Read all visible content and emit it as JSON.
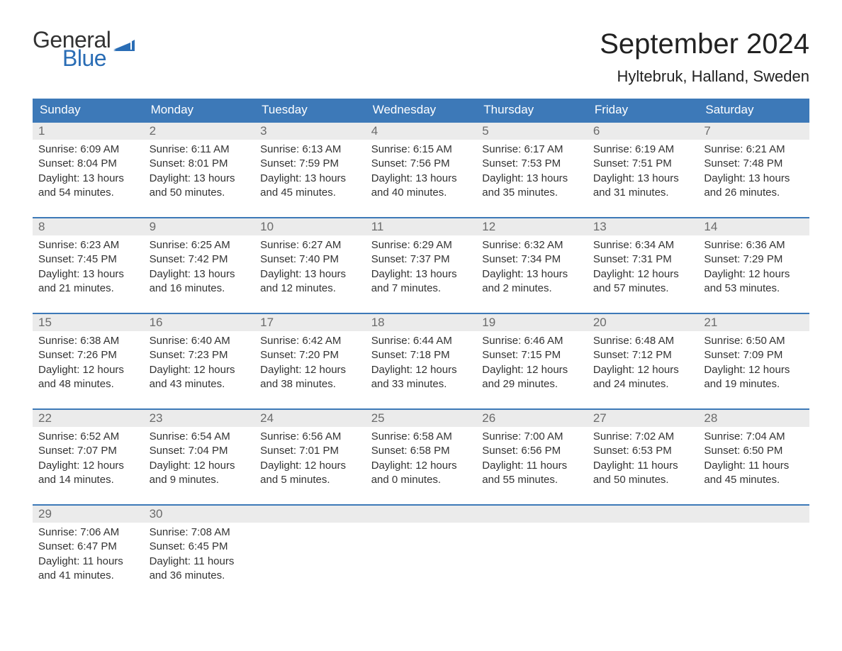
{
  "brand": {
    "word1": "General",
    "word2": "Blue",
    "word1_color": "#333333",
    "word2_color": "#2a6db5",
    "flag_color": "#2a6db5",
    "fontsize": 32
  },
  "title": {
    "month_year": "September 2024",
    "location": "Hyltebruk, Halland, Sweden",
    "month_fontsize": 40,
    "month_color": "#222222",
    "location_fontsize": 22,
    "location_color": "#222222"
  },
  "calendar": {
    "header_bg": "#3d79b8",
    "header_fg": "#ffffff",
    "week_border_color": "#3d79b8",
    "daynum_bg": "#ebebeb",
    "daynum_fg": "#6b6b6b",
    "body_fg": "#333333",
    "body_bg": "#ffffff",
    "cell_fontsize": 15,
    "header_fontsize": 17,
    "days_of_week": [
      "Sunday",
      "Monday",
      "Tuesday",
      "Wednesday",
      "Thursday",
      "Friday",
      "Saturday"
    ],
    "weeks": [
      [
        {
          "n": "1",
          "sunrise": "Sunrise: 6:09 AM",
          "sunset": "Sunset: 8:04 PM",
          "dl1": "Daylight: 13 hours",
          "dl2": "and 54 minutes."
        },
        {
          "n": "2",
          "sunrise": "Sunrise: 6:11 AM",
          "sunset": "Sunset: 8:01 PM",
          "dl1": "Daylight: 13 hours",
          "dl2": "and 50 minutes."
        },
        {
          "n": "3",
          "sunrise": "Sunrise: 6:13 AM",
          "sunset": "Sunset: 7:59 PM",
          "dl1": "Daylight: 13 hours",
          "dl2": "and 45 minutes."
        },
        {
          "n": "4",
          "sunrise": "Sunrise: 6:15 AM",
          "sunset": "Sunset: 7:56 PM",
          "dl1": "Daylight: 13 hours",
          "dl2": "and 40 minutes."
        },
        {
          "n": "5",
          "sunrise": "Sunrise: 6:17 AM",
          "sunset": "Sunset: 7:53 PM",
          "dl1": "Daylight: 13 hours",
          "dl2": "and 35 minutes."
        },
        {
          "n": "6",
          "sunrise": "Sunrise: 6:19 AM",
          "sunset": "Sunset: 7:51 PM",
          "dl1": "Daylight: 13 hours",
          "dl2": "and 31 minutes."
        },
        {
          "n": "7",
          "sunrise": "Sunrise: 6:21 AM",
          "sunset": "Sunset: 7:48 PM",
          "dl1": "Daylight: 13 hours",
          "dl2": "and 26 minutes."
        }
      ],
      [
        {
          "n": "8",
          "sunrise": "Sunrise: 6:23 AM",
          "sunset": "Sunset: 7:45 PM",
          "dl1": "Daylight: 13 hours",
          "dl2": "and 21 minutes."
        },
        {
          "n": "9",
          "sunrise": "Sunrise: 6:25 AM",
          "sunset": "Sunset: 7:42 PM",
          "dl1": "Daylight: 13 hours",
          "dl2": "and 16 minutes."
        },
        {
          "n": "10",
          "sunrise": "Sunrise: 6:27 AM",
          "sunset": "Sunset: 7:40 PM",
          "dl1": "Daylight: 13 hours",
          "dl2": "and 12 minutes."
        },
        {
          "n": "11",
          "sunrise": "Sunrise: 6:29 AM",
          "sunset": "Sunset: 7:37 PM",
          "dl1": "Daylight: 13 hours",
          "dl2": "and 7 minutes."
        },
        {
          "n": "12",
          "sunrise": "Sunrise: 6:32 AM",
          "sunset": "Sunset: 7:34 PM",
          "dl1": "Daylight: 13 hours",
          "dl2": "and 2 minutes."
        },
        {
          "n": "13",
          "sunrise": "Sunrise: 6:34 AM",
          "sunset": "Sunset: 7:31 PM",
          "dl1": "Daylight: 12 hours",
          "dl2": "and 57 minutes."
        },
        {
          "n": "14",
          "sunrise": "Sunrise: 6:36 AM",
          "sunset": "Sunset: 7:29 PM",
          "dl1": "Daylight: 12 hours",
          "dl2": "and 53 minutes."
        }
      ],
      [
        {
          "n": "15",
          "sunrise": "Sunrise: 6:38 AM",
          "sunset": "Sunset: 7:26 PM",
          "dl1": "Daylight: 12 hours",
          "dl2": "and 48 minutes."
        },
        {
          "n": "16",
          "sunrise": "Sunrise: 6:40 AM",
          "sunset": "Sunset: 7:23 PM",
          "dl1": "Daylight: 12 hours",
          "dl2": "and 43 minutes."
        },
        {
          "n": "17",
          "sunrise": "Sunrise: 6:42 AM",
          "sunset": "Sunset: 7:20 PM",
          "dl1": "Daylight: 12 hours",
          "dl2": "and 38 minutes."
        },
        {
          "n": "18",
          "sunrise": "Sunrise: 6:44 AM",
          "sunset": "Sunset: 7:18 PM",
          "dl1": "Daylight: 12 hours",
          "dl2": "and 33 minutes."
        },
        {
          "n": "19",
          "sunrise": "Sunrise: 6:46 AM",
          "sunset": "Sunset: 7:15 PM",
          "dl1": "Daylight: 12 hours",
          "dl2": "and 29 minutes."
        },
        {
          "n": "20",
          "sunrise": "Sunrise: 6:48 AM",
          "sunset": "Sunset: 7:12 PM",
          "dl1": "Daylight: 12 hours",
          "dl2": "and 24 minutes."
        },
        {
          "n": "21",
          "sunrise": "Sunrise: 6:50 AM",
          "sunset": "Sunset: 7:09 PM",
          "dl1": "Daylight: 12 hours",
          "dl2": "and 19 minutes."
        }
      ],
      [
        {
          "n": "22",
          "sunrise": "Sunrise: 6:52 AM",
          "sunset": "Sunset: 7:07 PM",
          "dl1": "Daylight: 12 hours",
          "dl2": "and 14 minutes."
        },
        {
          "n": "23",
          "sunrise": "Sunrise: 6:54 AM",
          "sunset": "Sunset: 7:04 PM",
          "dl1": "Daylight: 12 hours",
          "dl2": "and 9 minutes."
        },
        {
          "n": "24",
          "sunrise": "Sunrise: 6:56 AM",
          "sunset": "Sunset: 7:01 PM",
          "dl1": "Daylight: 12 hours",
          "dl2": "and 5 minutes."
        },
        {
          "n": "25",
          "sunrise": "Sunrise: 6:58 AM",
          "sunset": "Sunset: 6:58 PM",
          "dl1": "Daylight: 12 hours",
          "dl2": "and 0 minutes."
        },
        {
          "n": "26",
          "sunrise": "Sunrise: 7:00 AM",
          "sunset": "Sunset: 6:56 PM",
          "dl1": "Daylight: 11 hours",
          "dl2": "and 55 minutes."
        },
        {
          "n": "27",
          "sunrise": "Sunrise: 7:02 AM",
          "sunset": "Sunset: 6:53 PM",
          "dl1": "Daylight: 11 hours",
          "dl2": "and 50 minutes."
        },
        {
          "n": "28",
          "sunrise": "Sunrise: 7:04 AM",
          "sunset": "Sunset: 6:50 PM",
          "dl1": "Daylight: 11 hours",
          "dl2": "and 45 minutes."
        }
      ],
      [
        {
          "n": "29",
          "sunrise": "Sunrise: 7:06 AM",
          "sunset": "Sunset: 6:47 PM",
          "dl1": "Daylight: 11 hours",
          "dl2": "and 41 minutes."
        },
        {
          "n": "30",
          "sunrise": "Sunrise: 7:08 AM",
          "sunset": "Sunset: 6:45 PM",
          "dl1": "Daylight: 11 hours",
          "dl2": "and 36 minutes."
        },
        {
          "empty": true
        },
        {
          "empty": true
        },
        {
          "empty": true
        },
        {
          "empty": true
        },
        {
          "empty": true
        }
      ]
    ]
  }
}
